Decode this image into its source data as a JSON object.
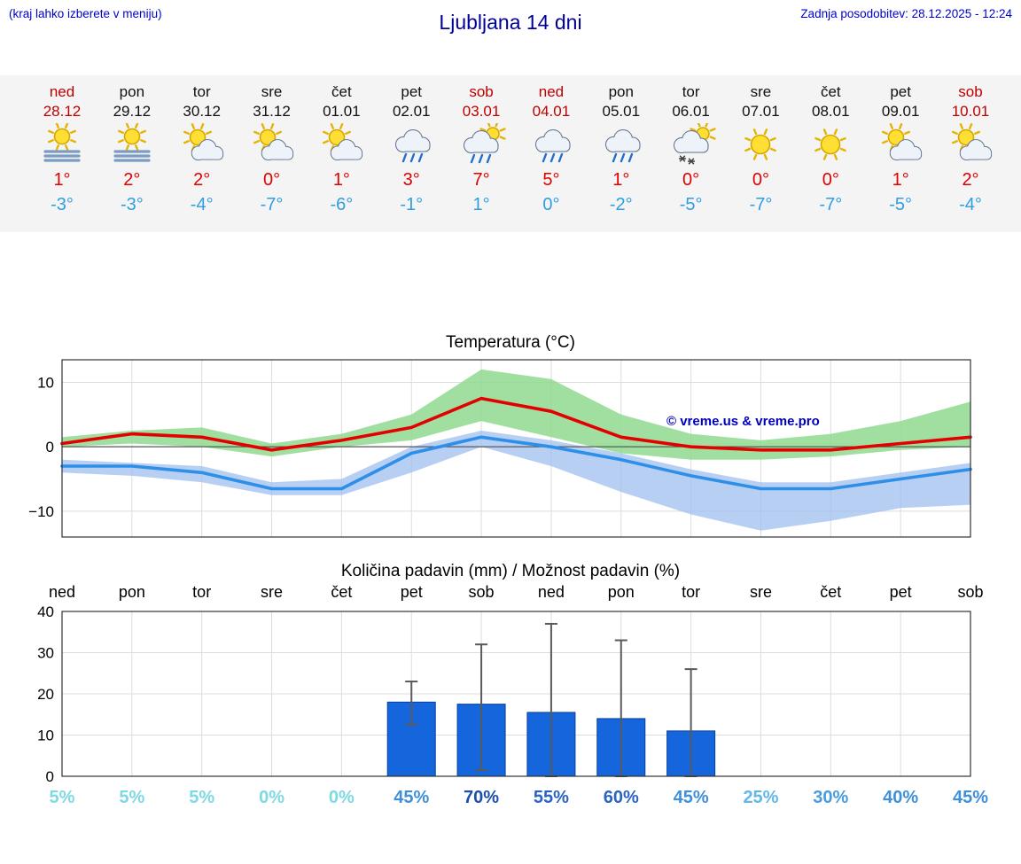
{
  "header": {
    "hint": "(kraj lahko izberete v meniju)",
    "title": "Ljubljana 14 dni",
    "last_update": "Zadnja posodobitev: 28.12.2025 - 12:24"
  },
  "colors": {
    "header_blue": "#0000cc",
    "title_blue": "#000099",
    "weekend_red": "#c00000",
    "tmax_red": "#e00000",
    "tmin_blue": "#2f9ee0"
  },
  "forecast_days": [
    {
      "day": "ned",
      "date": "28.12",
      "weekend": true,
      "icon": "fog-sun",
      "tmax": "1°",
      "tmin": "-3°"
    },
    {
      "day": "pon",
      "date": "29.12",
      "weekend": false,
      "icon": "fog-sun",
      "tmax": "2°",
      "tmin": "-3°"
    },
    {
      "day": "tor",
      "date": "30.12",
      "weekend": false,
      "icon": "sun-cloud",
      "tmax": "2°",
      "tmin": "-4°"
    },
    {
      "day": "sre",
      "date": "31.12",
      "weekend": false,
      "icon": "sun-cloud",
      "tmax": "0°",
      "tmin": "-7°"
    },
    {
      "day": "čet",
      "date": "01.01",
      "weekend": false,
      "icon": "sun-cloud",
      "tmax": "1°",
      "tmin": "-6°"
    },
    {
      "day": "pet",
      "date": "02.01",
      "weekend": false,
      "icon": "rain",
      "tmax": "3°",
      "tmin": "-1°"
    },
    {
      "day": "sob",
      "date": "03.01",
      "weekend": true,
      "icon": "rain-sun",
      "tmax": "7°",
      "tmin": "1°"
    },
    {
      "day": "ned",
      "date": "04.01",
      "weekend": true,
      "icon": "rain",
      "tmax": "5°",
      "tmin": "0°"
    },
    {
      "day": "pon",
      "date": "05.01",
      "weekend": false,
      "icon": "rain",
      "tmax": "1°",
      "tmin": "-2°"
    },
    {
      "day": "tor",
      "date": "06.01",
      "weekend": false,
      "icon": "snow-sun",
      "tmax": "0°",
      "tmin": "-5°"
    },
    {
      "day": "sre",
      "date": "07.01",
      "weekend": false,
      "icon": "sunny",
      "tmax": "0°",
      "tmin": "-7°"
    },
    {
      "day": "čet",
      "date": "08.01",
      "weekend": false,
      "icon": "sunny",
      "tmax": "0°",
      "tmin": "-7°"
    },
    {
      "day": "pet",
      "date": "09.01",
      "weekend": false,
      "icon": "sun-cloud",
      "tmax": "1°",
      "tmin": "-5°"
    },
    {
      "day": "sob",
      "date": "10.01",
      "weekend": true,
      "icon": "sun-cloud",
      "tmax": "2°",
      "tmin": "-4°"
    }
  ],
  "chart_data": [
    {
      "type": "line",
      "title": "Temperatura (°C)",
      "categories": [
        "ned",
        "pon",
        "tor",
        "sre",
        "čet",
        "pet",
        "sob",
        "ned",
        "pon",
        "tor",
        "sre",
        "čet",
        "pet",
        "sob"
      ],
      "series": [
        {
          "name": "max-temperatura",
          "color": "#e30000",
          "values": [
            0.5,
            2,
            1.5,
            -0.5,
            1,
            3,
            7.5,
            5.5,
            1.5,
            0,
            -0.5,
            -0.5,
            0.5,
            1.5
          ]
        },
        {
          "name": "min-temperatura",
          "color": "#2e8fe8",
          "values": [
            -3,
            -3,
            -4,
            -6.5,
            -6.5,
            -1,
            1.5,
            0,
            -2,
            -4.5,
            -6.5,
            -6.5,
            -5,
            -3.5
          ]
        }
      ],
      "bands": [
        {
          "name": "max-razpon",
          "color": "#8fd98f",
          "upper": [
            1.5,
            2.5,
            3,
            0.5,
            2,
            5,
            12,
            10.5,
            5,
            2,
            1,
            2,
            4,
            7
          ],
          "lower": [
            0,
            0.5,
            0,
            -1.5,
            0,
            1,
            4,
            1.5,
            -1,
            -2,
            -2,
            -1.5,
            -0.5,
            0
          ]
        },
        {
          "name": "min-razpon",
          "color": "#9dbdf0",
          "upper": [
            -2,
            -2.5,
            -3,
            -5.5,
            -5,
            0,
            2.5,
            1,
            -1,
            -3.5,
            -5.5,
            -5.5,
            -4,
            -2.5
          ],
          "lower": [
            -4,
            -4.5,
            -5.5,
            -7.5,
            -7.5,
            -4,
            0,
            -3,
            -7,
            -10.5,
            -13,
            -11.5,
            -9.5,
            -9
          ]
        }
      ],
      "ylim": [
        -14,
        13.5
      ],
      "yticks": [
        -10,
        0,
        10
      ],
      "grid": true,
      "legend_position": "none",
      "watermark": "© vreme.us & vreme.pro"
    },
    {
      "type": "bar",
      "title": "Količina padavin (mm) / Možnost padavin (%)",
      "categories": [
        "ned",
        "pon",
        "tor",
        "sre",
        "čet",
        "pet",
        "sob",
        "ned",
        "pon",
        "tor",
        "sre",
        "čet",
        "pet",
        "sob"
      ],
      "values": [
        0,
        0,
        0,
        0,
        0,
        18,
        17.5,
        15.5,
        14,
        11,
        0,
        0,
        0,
        0
      ],
      "whisker_high": [
        0,
        0,
        0,
        0,
        0,
        23,
        32,
        37,
        33,
        26,
        0,
        0,
        0,
        0
      ],
      "whisker_low": [
        0,
        0,
        0,
        0,
        0,
        12.5,
        1.5,
        0,
        0,
        0,
        0,
        0,
        0,
        0
      ],
      "bar_color": "#1565dd",
      "ylim": [
        0,
        40
      ],
      "yticks": [
        0,
        10,
        20,
        30,
        40
      ],
      "grid": true,
      "probabilities": [
        {
          "label": "5%",
          "color": "#7fd9e3"
        },
        {
          "label": "5%",
          "color": "#7fd9e3"
        },
        {
          "label": "5%",
          "color": "#7fd9e3"
        },
        {
          "label": "0%",
          "color": "#7fd9e3"
        },
        {
          "label": "0%",
          "color": "#7fd9e3"
        },
        {
          "label": "45%",
          "color": "#3f8fd9"
        },
        {
          "label": "70%",
          "color": "#1d4fae"
        },
        {
          "label": "55%",
          "color": "#2a63c4"
        },
        {
          "label": "60%",
          "color": "#2a63c4"
        },
        {
          "label": "45%",
          "color": "#3f8fd9"
        },
        {
          "label": "25%",
          "color": "#63b6e8"
        },
        {
          "label": "30%",
          "color": "#4a9ade"
        },
        {
          "label": "40%",
          "color": "#3f8fd9"
        },
        {
          "label": "45%",
          "color": "#3f8fd9"
        }
      ]
    }
  ]
}
